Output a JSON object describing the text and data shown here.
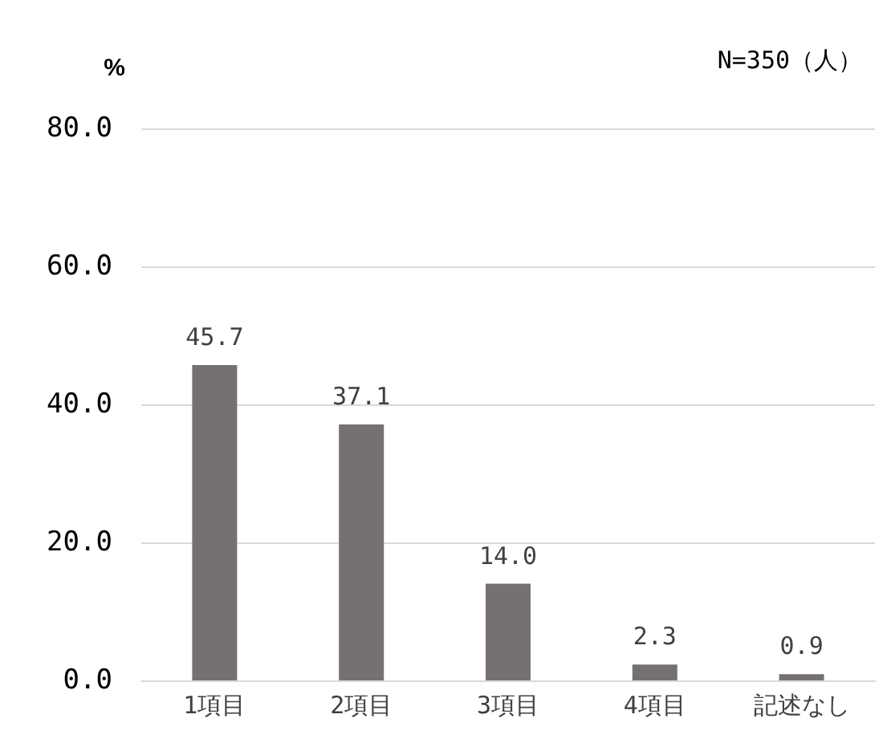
{
  "chart_data": {
    "type": "bar",
    "ylabel": "%",
    "annotations": [
      "N=350（人）"
    ],
    "categories": [
      "1項目",
      "2項目",
      "3項目",
      "4項目",
      "記述なし"
    ],
    "values": [
      45.7,
      37.1,
      14.0,
      2.3,
      0.9
    ],
    "color": "#767171",
    "ylim": [
      0,
      80
    ],
    "yticks": [
      {
        "value": 0,
        "label": "0.0"
      },
      {
        "value": 20,
        "label": "20.0"
      },
      {
        "value": 40,
        "label": "40.0"
      },
      {
        "value": 60,
        "label": "60.0"
      },
      {
        "value": 80,
        "label": "80.0"
      }
    ],
    "value_labels": [
      "45.7",
      "37.1",
      "14.0",
      "2.3",
      "0.9"
    ],
    "grid": "y"
  }
}
